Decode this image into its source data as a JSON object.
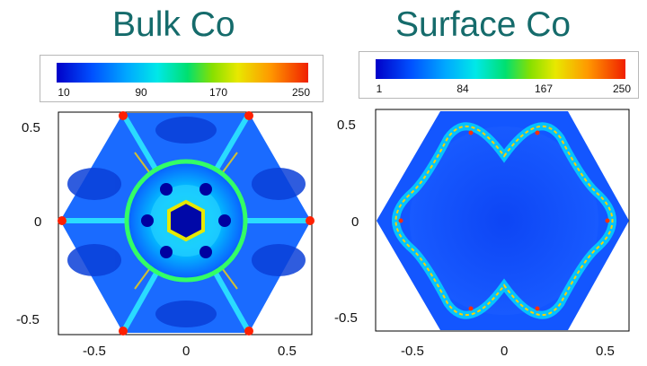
{
  "panels": [
    {
      "title": "Bulk Co",
      "colorbar": {
        "ticks": [
          "10",
          "90",
          "170",
          "250"
        ]
      }
    },
    {
      "title": "Surface Co",
      "colorbar": {
        "ticks": [
          "1",
          "84",
          "167",
          "250"
        ]
      }
    }
  ],
  "chart_data": [
    {
      "type": "heatmap",
      "title": "Bulk Co",
      "colorbar": {
        "min": 10,
        "max": 250,
        "ticks": [
          10,
          90,
          170,
          250
        ]
      },
      "xlim": [
        -0.65,
        0.65
      ],
      "ylim": [
        -0.6,
        0.6
      ],
      "xticks": [
        "-0.5",
        "0",
        "0.5"
      ],
      "yticks": [
        "0.5",
        "0",
        "-0.5"
      ],
      "xtick_values": [
        -0.5,
        0,
        0.5
      ],
      "ytick_values": [
        0.5,
        0,
        -0.5
      ],
      "shape": "hexagon"
    },
    {
      "type": "heatmap",
      "title": "Surface Co",
      "colorbar": {
        "min": 1,
        "max": 250,
        "ticks": [
          1,
          84,
          167,
          250
        ]
      },
      "xlim": [
        -0.65,
        0.65
      ],
      "ylim": [
        -0.6,
        0.6
      ],
      "xticks": [
        "-0.5",
        "0",
        "0.5"
      ],
      "yticks": [
        "0.5",
        "0",
        "-0.5"
      ],
      "xtick_values": [
        -0.5,
        0,
        0.5
      ],
      "ytick_values": [
        0.5,
        0,
        -0.5
      ],
      "shape": "hexagon"
    }
  ]
}
